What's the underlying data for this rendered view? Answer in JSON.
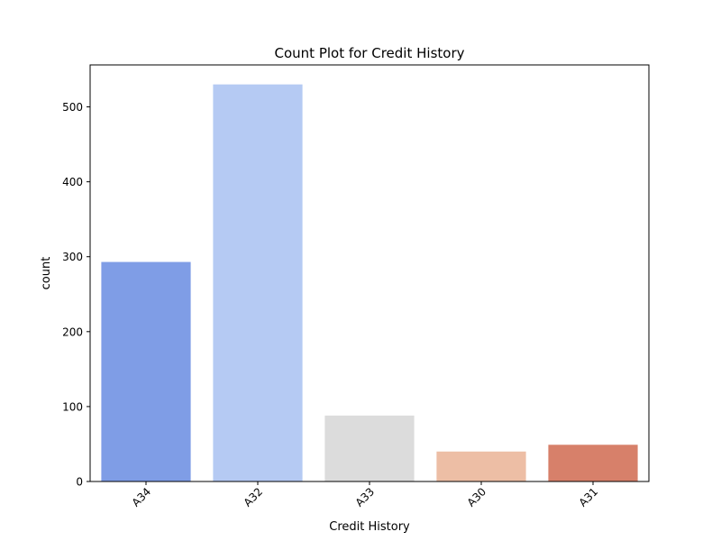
{
  "chart_data": {
    "type": "bar",
    "title": "Count Plot for Credit History",
    "xlabel": "Credit History",
    "ylabel": "count",
    "categories": [
      "A34",
      "A32",
      "A33",
      "A30",
      "A31"
    ],
    "values": [
      293,
      530,
      88,
      40,
      49
    ],
    "colors": [
      "#7f9de6",
      "#b5caf3",
      "#dcdcdc",
      "#edbea5",
      "#d7806a"
    ],
    "ylim": [
      0,
      556
    ],
    "yticks": [
      0,
      100,
      200,
      300,
      400,
      500
    ],
    "grid": false,
    "legend": "none"
  }
}
